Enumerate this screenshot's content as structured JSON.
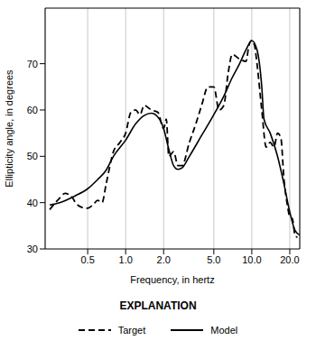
{
  "chart_data": {
    "type": "line",
    "x_label": "Frequency, in hertz",
    "y_label": "Ellipticity angle, in degrees",
    "legend_title": "EXPLANATION",
    "legend": "bottom",
    "log": "x",
    "grid": true,
    "xlim": [
      0.23,
      24
    ],
    "xticks": [
      0.5,
      {
        "value": 1,
        "label": "1.0"
      },
      {
        "value": 2,
        "label": "2.0"
      },
      {
        "value": 5,
        "label": "5.0"
      },
      {
        "value": 10,
        "label": "10.0"
      },
      {
        "value": 20,
        "label": "20.0"
      }
    ],
    "ylim": [
      30,
      82
    ],
    "yticks": [
      30,
      40,
      50,
      60,
      70
    ],
    "series": [
      {
        "name": "Target",
        "color": "#000000",
        "line_style": "dashed",
        "x": [
          0.25,
          0.3,
          0.33,
          0.38,
          0.4,
          0.45,
          0.5,
          0.55,
          0.6,
          0.65,
          0.7,
          0.8,
          0.9,
          1.0,
          1.1,
          1.2,
          1.3,
          1.4,
          1.6,
          1.8,
          2.0,
          2.1,
          2.2,
          2.4,
          2.6,
          2.8,
          3.2,
          3.6,
          4.0,
          4.5,
          5.0,
          5.5,
          6.0,
          6.5,
          7,
          8,
          9,
          9.5,
          10,
          10.5,
          11,
          12,
          13,
          14,
          15,
          16,
          17,
          18,
          19,
          20,
          21,
          22,
          23
        ],
        "values": [
          38.5,
          41,
          42,
          41,
          40,
          39,
          38.8,
          39.5,
          40.5,
          40,
          44,
          51,
          53,
          55,
          59.5,
          60,
          59,
          61,
          60,
          59.5,
          56,
          58,
          50,
          51,
          48,
          48,
          53,
          57,
          61,
          65,
          65,
          60,
          61,
          68,
          72,
          71,
          70.5,
          74,
          75,
          74,
          70,
          60,
          52,
          53,
          52,
          55,
          54,
          45,
          40,
          37,
          36.5,
          33,
          32.5
        ]
      },
      {
        "name": "Model",
        "color": "#000000",
        "line_style": "solid",
        "x": [
          0.25,
          0.3,
          0.4,
          0.5,
          0.6,
          0.7,
          0.8,
          1.0,
          1.2,
          1.4,
          1.6,
          1.8,
          2.0,
          2.2,
          2.4,
          2.6,
          2.8,
          3.2,
          4,
          5,
          6,
          7,
          8,
          9,
          10,
          11,
          12,
          12.5,
          14,
          16,
          18,
          20,
          22,
          24
        ],
        "values": [
          39.5,
          40,
          41.5,
          43,
          45,
          47,
          50,
          53.5,
          57,
          58.8,
          59.3,
          58.5,
          56,
          51.5,
          48,
          47.2,
          47.5,
          50,
          54.5,
          59,
          63,
          67,
          70,
          73,
          75,
          73,
          65,
          58,
          55,
          50,
          44,
          38,
          34,
          33
        ]
      }
    ]
  }
}
